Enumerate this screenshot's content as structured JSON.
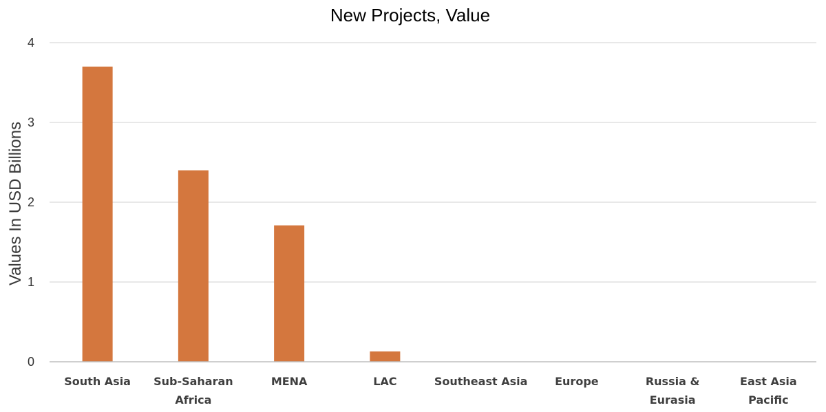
{
  "chart_data": {
    "type": "bar",
    "title": "New Projects, Value",
    "xlabel": "",
    "ylabel": "Values In USD Billions",
    "ylim": [
      0,
      4
    ],
    "yticks": [
      0,
      1,
      2,
      3,
      4
    ],
    "grid": true,
    "bar_color": "#d4773e",
    "categories": [
      [
        "South Asia"
      ],
      [
        "Sub-Saharan",
        "Africa"
      ],
      [
        "MENA"
      ],
      [
        "LAC"
      ],
      [
        "Southeast Asia"
      ],
      [
        "Europe"
      ],
      [
        "Russia &",
        "Eurasia"
      ],
      [
        "East Asia",
        "Pacific"
      ]
    ],
    "values": [
      3.7,
      2.4,
      1.71,
      0.13,
      0,
      0,
      0,
      0
    ]
  }
}
